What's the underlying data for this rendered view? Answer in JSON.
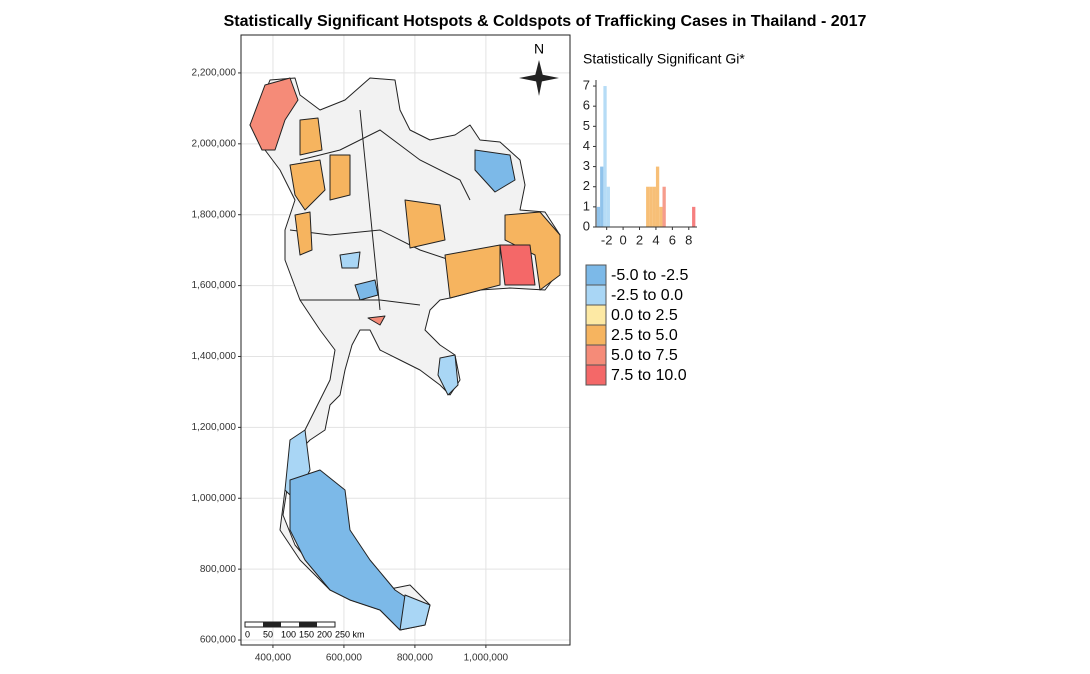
{
  "title": "Statistically Significant Hotspots & Coldspots of Trafficking Cases in Thailand - 2017",
  "map": {
    "xlim": [
      310000,
      1237000
    ],
    "ylim": [
      586000,
      2307000
    ],
    "grid": true,
    "xticks": [
      {
        "value": 400000,
        "label": "400,000"
      },
      {
        "value": 600000,
        "label": "600,000"
      },
      {
        "value": 800000,
        "label": "800,000"
      },
      {
        "value": 1000000,
        "label": "1,000,000"
      }
    ],
    "yticks": [
      {
        "value": 600000,
        "label": "600,000"
      },
      {
        "value": 800000,
        "label": "800,000"
      },
      {
        "value": 1000000,
        "label": "1,000,000"
      },
      {
        "value": 1200000,
        "label": "1,200,000"
      },
      {
        "value": 1400000,
        "label": "1,400,000"
      },
      {
        "value": 1600000,
        "label": "1,600,000"
      },
      {
        "value": 1800000,
        "label": "1,800,000"
      },
      {
        "value": 2000000,
        "label": "2,000,000"
      },
      {
        "value": 2200000,
        "label": "2,200,000"
      }
    ],
    "north_label": "N",
    "scale_bar": [
      "0",
      "50",
      "100",
      "150",
      "200",
      "250 km"
    ]
  },
  "histogram": {
    "type": "histogram",
    "title": "Statistically Significant Gi*",
    "bins": [
      -3.2,
      -2.8,
      -2.4,
      -2.0,
      -1.6,
      -1.2,
      -0.8,
      -0.4,
      0.0,
      0.4,
      0.8,
      1.2,
      1.6,
      2.0,
      2.4,
      2.8,
      3.2,
      3.6,
      4.0,
      4.4,
      4.8,
      5.2,
      5.6,
      6.0,
      6.4,
      6.8,
      7.2,
      7.6,
      8.0,
      8.4,
      8.8
    ],
    "counts": [
      1,
      3,
      7,
      2,
      0,
      0,
      0,
      0,
      0,
      0,
      0,
      0,
      0,
      0,
      0,
      2,
      2,
      2,
      3,
      1,
      2,
      0,
      0,
      0,
      0,
      0,
      0,
      0,
      0,
      1
    ],
    "colors": [
      "#7cb9e8",
      "#7cb9e8",
      "#a9d6f5",
      "#a9d6f5",
      "#a9d6f5",
      "#a9d6f5",
      "#a9d6f5",
      "#a9d6f5",
      "#fde9a4",
      "#fde9a4",
      "#fde9a4",
      "#fde9a4",
      "#fde9a4",
      "#fde9a4",
      "#fde9a4",
      "#f6b45f",
      "#f6b45f",
      "#f6b45f",
      "#f6b45f",
      "#f6b45f",
      "#f58b78",
      "#f58b78",
      "#f58b78",
      "#f58b78",
      "#f58b78",
      "#f58b78",
      "#f58b78",
      "#f46868",
      "#f46868",
      "#f46868"
    ],
    "xlim": [
      -3.3,
      9.0
    ],
    "ylim": [
      0,
      7.3
    ],
    "xticks": [
      -2,
      0,
      2,
      4,
      6,
      8
    ],
    "yticks": [
      0,
      1,
      2,
      3,
      4,
      5,
      6,
      7
    ]
  },
  "legend": [
    {
      "label": "-5.0 to -2.5",
      "color": "#7cb9e8"
    },
    {
      "label": "-2.5 to 0.0",
      "color": "#a9d6f5"
    },
    {
      "label": "0.0 to 2.5",
      "color": "#fde9a4"
    },
    {
      "label": "2.5 to 5.0",
      "color": "#f6b45f"
    },
    {
      "label": "5.0 to 7.5",
      "color": "#f58b78"
    },
    {
      "label": "7.5 to 10.0",
      "color": "#f46868"
    }
  ]
}
